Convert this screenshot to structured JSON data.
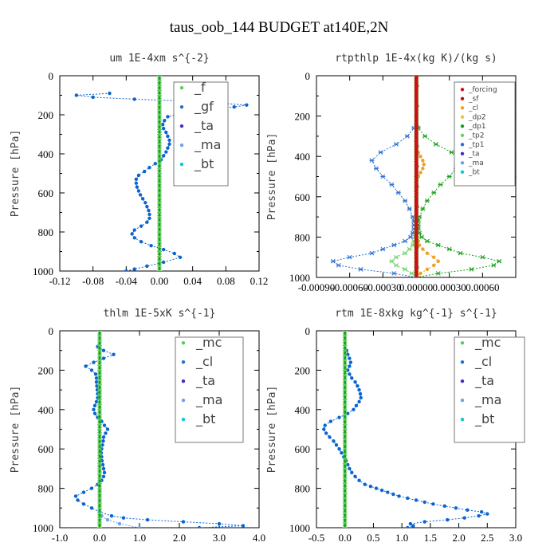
{
  "title": "taus_oob_144  BUDGET at140E,2N",
  "colors": {
    "zero": "#16a016",
    "blue": "#0a64d2",
    "red": "#d01010",
    "axis": "#000000"
  },
  "chart_data": [
    {
      "type": "line",
      "title": "um  1E-4xm s^{-2}",
      "ylabel": "Pressure [hPa]",
      "xlim": [
        -0.12,
        0.12
      ],
      "ylim": [
        1000,
        0
      ],
      "xticks": [
        "-0.12",
        "-0.08",
        "-0.04",
        "0.00",
        "0.04",
        "0.08",
        "0.12"
      ],
      "yticks": [
        "0",
        "200",
        "400",
        "600",
        "800",
        "1000"
      ],
      "legend": [
        "_f",
        "_gf",
        "_ta",
        "_ma",
        "_bt"
      ],
      "series": [
        {
          "name": "_gf",
          "color": "#0a64d2",
          "p": [
            1000,
            990,
            975,
            955,
            930,
            910,
            890,
            870,
            850,
            830,
            810,
            790,
            770,
            750,
            730,
            710,
            690,
            670,
            650,
            630,
            610,
            590,
            570,
            550,
            530,
            510,
            490,
            470,
            450,
            430,
            410,
            390,
            370,
            350,
            330,
            310,
            290,
            270,
            250,
            230,
            210,
            190,
            170,
            160,
            150,
            140,
            130,
            120,
            110,
            100,
            90
          ],
          "x": [
            -0.04,
            -0.03,
            -0.015,
            0.005,
            0.025,
            0.018,
            0.005,
            -0.01,
            -0.022,
            -0.03,
            -0.033,
            -0.03,
            -0.022,
            -0.015,
            -0.012,
            -0.012,
            -0.013,
            -0.015,
            -0.017,
            -0.02,
            -0.023,
            -0.025,
            -0.027,
            -0.028,
            -0.028,
            -0.025,
            -0.018,
            -0.012,
            -0.005,
            0.002,
            0.005,
            0.008,
            0.01,
            0.012,
            0.012,
            0.01,
            0.008,
            0.005,
            0.004,
            0.006,
            0.01,
            0.03,
            0.06,
            0.09,
            0.105,
            0.07,
            0.03,
            -0.03,
            -0.08,
            -0.1,
            -0.06
          ]
        }
      ]
    },
    {
      "type": "line",
      "title": "rtpthlp  1E-4x(kg K)/(kg s)",
      "ylabel": "Pressure [hPa]",
      "xlim": [
        -0.0009,
        0.0009
      ],
      "ylim": [
        1000,
        0
      ],
      "xticks": [
        "-0.00090",
        "-0.00060",
        "-0.00030",
        "0.00000",
        "0.00030",
        "0.00060"
      ],
      "yticks": [
        "0",
        "200",
        "400",
        "600",
        "800",
        "1000"
      ],
      "legend": [
        "_forcing",
        "_sf",
        "_cl",
        "_dp2",
        "_dp1",
        "_tp2",
        "_tp1",
        "_ta",
        "_ma",
        "_bt"
      ],
      "series": [
        {
          "name": "_dp1",
          "color": "#1aa01a",
          "p": [
            1000,
            980,
            960,
            940,
            920,
            900,
            880,
            860,
            840,
            820,
            800,
            780,
            760,
            740,
            720,
            700,
            660,
            620,
            580,
            540,
            500,
            460,
            420,
            380,
            340,
            300,
            260,
            250
          ],
          "x": [
            0.0,
            0.0002,
            0.0005,
            0.0007,
            0.00075,
            0.0006,
            0.0004,
            0.0003,
            0.0002,
            0.0001,
            5e-05,
            3e-05,
            2e-05,
            2e-05,
            2e-05,
            3e-05,
            6e-05,
            0.0001,
            0.00016,
            0.00022,
            0.0003,
            0.00036,
            0.0004,
            0.00032,
            0.00018,
            8e-05,
            2e-05,
            0.0
          ]
        },
        {
          "name": "_tp1",
          "color": "#2b6fd0",
          "p": [
            1000,
            980,
            960,
            940,
            920,
            900,
            880,
            860,
            840,
            820,
            800,
            780,
            760,
            740,
            720,
            700,
            660,
            620,
            580,
            540,
            500,
            460,
            420,
            380,
            340,
            300,
            260,
            250
          ],
          "x": [
            0.0,
            -0.0002,
            -0.0005,
            -0.0007,
            -0.00075,
            -0.0006,
            -0.0004,
            -0.0003,
            -0.0002,
            -0.0001,
            -5e-05,
            -3e-05,
            -2e-05,
            -2e-05,
            -2e-05,
            -3e-05,
            -6e-05,
            -0.0001,
            -0.00016,
            -0.00022,
            -0.0003,
            -0.00036,
            -0.0004,
            -0.00032,
            -0.00018,
            -8e-05,
            -2e-05,
            0.0
          ]
        },
        {
          "name": "_tp2",
          "color": "#6ad26a",
          "p": [
            1000,
            980,
            960,
            940,
            920,
            900,
            880,
            860,
            840,
            820,
            800,
            780
          ],
          "x": [
            0.0,
            -4e-05,
            -0.0001,
            -0.00018,
            -0.00022,
            -0.00018,
            -0.0001,
            -6e-05,
            -3e-05,
            -2e-05,
            -1e-05,
            0.0
          ]
        },
        {
          "name": "_dp2",
          "color": "#f0a020",
          "p": [
            1000,
            980,
            960,
            940,
            920,
            900,
            880,
            860,
            840,
            820,
            800,
            780
          ],
          "x": [
            0.0,
            4e-05,
            0.0001,
            0.00016,
            0.0002,
            0.00016,
            0.0001,
            6e-05,
            3e-05,
            2e-05,
            1e-05,
            0.0
          ]
        },
        {
          "name": "_dp2",
          "color": "#f0a020",
          "p": [
            520,
            500,
            480,
            460,
            440,
            420,
            400,
            380,
            360
          ],
          "x": [
            0.0,
            2e-05,
            4e-05,
            6e-05,
            7e-05,
            6e-05,
            4e-05,
            2e-05,
            0.0
          ]
        },
        {
          "name": "_forcing",
          "color": "#d01010",
          "p": [
            0,
            100,
            200,
            300,
            400,
            500,
            600,
            700,
            800,
            900,
            1000
          ],
          "x": [
            0,
            0,
            0,
            0,
            0,
            0,
            0,
            0,
            0,
            0,
            0
          ]
        },
        {
          "name": "_sf",
          "color": "#b01515",
          "p": [
            0,
            50,
            150,
            250,
            350,
            450,
            550,
            650,
            750,
            850,
            950,
            1000
          ],
          "x": [
            1e-05,
            1e-05,
            1e-05,
            1e-05,
            1e-05,
            1e-05,
            1e-05,
            1e-05,
            1e-05,
            1e-05,
            1e-05,
            1e-05
          ]
        }
      ]
    },
    {
      "type": "line",
      "title": "thlm  1E-5xK s^{-1}",
      "ylabel": "Pressure [hPa]",
      "xlim": [
        -1.0,
        4.0
      ],
      "ylim": [
        1000,
        0
      ],
      "xticks": [
        "-1.0",
        "0.0",
        "1.0",
        "2.0",
        "3.0",
        "4.0"
      ],
      "yticks": [
        "0",
        "200",
        "400",
        "600",
        "800",
        "1000"
      ],
      "legend": [
        "_mc",
        "_cl",
        "_ta",
        "_ma",
        "_bt"
      ],
      "series": [
        {
          "name": "_cl",
          "color": "#0a64d2",
          "p": [
            1000,
            990,
            980,
            970,
            960,
            950,
            940,
            920,
            900,
            880,
            860,
            840,
            820,
            800,
            780,
            760,
            740,
            720,
            700,
            680,
            660,
            640,
            620,
            600,
            580,
            560,
            540,
            520,
            500,
            480,
            460,
            440,
            420,
            400,
            380,
            360,
            340,
            320,
            300,
            280,
            260,
            240,
            220,
            200,
            180,
            160,
            140,
            120,
            100,
            80
          ],
          "x": [
            2.5,
            3.6,
            3.0,
            2.1,
            1.2,
            0.6,
            0.3,
            0.0,
            -0.2,
            -0.4,
            -0.55,
            -0.6,
            -0.4,
            -0.2,
            -0.05,
            0.05,
            0.1,
            0.12,
            0.1,
            0.08,
            0.06,
            0.05,
            0.04,
            0.05,
            0.07,
            0.09,
            0.1,
            0.15,
            0.2,
            0.12,
            0.05,
            -0.05,
            -0.12,
            -0.15,
            -0.12,
            -0.08,
            -0.05,
            -0.05,
            -0.06,
            -0.07,
            -0.08,
            -0.08,
            -0.1,
            -0.2,
            -0.35,
            -0.15,
            0.1,
            0.35,
            0.1,
            -0.05
          ]
        },
        {
          "name": "_ma",
          "color": "#6fa0e8",
          "p": [
            1000,
            980,
            960,
            940
          ],
          "x": [
            1.0,
            0.5,
            0.2,
            0.05
          ]
        }
      ]
    },
    {
      "type": "line",
      "title": "rtm  1E-8xkg kg^{-1} s^{-1}",
      "ylabel": "Pressure [hPa]",
      "xlim": [
        -0.5,
        3.0
      ],
      "ylim": [
        1000,
        0
      ],
      "xticks": [
        "-0.5",
        "0.0",
        "0.5",
        "1.0",
        "1.5",
        "2.0",
        "2.5",
        "3.0"
      ],
      "yticks": [
        "0",
        "200",
        "400",
        "600",
        "800",
        "1000"
      ],
      "legend": [
        "_mc",
        "_cl",
        "_ta",
        "_ma",
        "_bt"
      ],
      "series": [
        {
          "name": "_cl",
          "color": "#0a64d2",
          "p": [
            1000,
            990,
            980,
            970,
            960,
            950,
            940,
            930,
            920,
            910,
            900,
            890,
            880,
            870,
            860,
            850,
            840,
            830,
            820,
            810,
            800,
            790,
            780,
            760,
            740,
            720,
            700,
            680,
            660,
            640,
            620,
            600,
            580,
            560,
            540,
            520,
            500,
            480,
            460,
            440,
            420,
            400,
            380,
            360,
            340,
            320,
            300,
            280,
            260,
            240,
            220,
            200,
            180,
            160,
            140,
            120,
            100
          ],
          "x": [
            1.1,
            1.2,
            1.15,
            1.4,
            1.8,
            2.1,
            2.35,
            2.5,
            2.4,
            2.15,
            1.95,
            1.75,
            1.55,
            1.4,
            1.25,
            1.1,
            0.95,
            0.85,
            0.75,
            0.65,
            0.55,
            0.45,
            0.35,
            0.25,
            0.18,
            0.12,
            0.08,
            0.05,
            0.02,
            -0.02,
            -0.06,
            -0.1,
            -0.15,
            -0.2,
            -0.27,
            -0.33,
            -0.37,
            -0.35,
            -0.25,
            -0.1,
            0.05,
            0.15,
            0.2,
            0.25,
            0.28,
            0.27,
            0.25,
            0.22,
            0.18,
            0.12,
            0.08,
            0.05,
            0.08,
            0.1,
            0.08,
            0.05,
            0.03
          ]
        }
      ]
    }
  ]
}
